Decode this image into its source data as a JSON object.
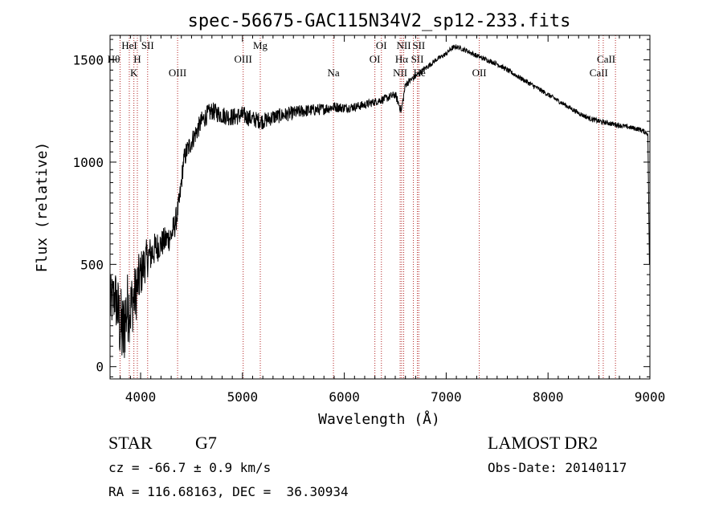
{
  "colors": {
    "spectrum": "#000000",
    "line_marker": "#b22222",
    "axis": "#000000",
    "background": "#ffffff"
  },
  "chart_data": {
    "type": "line",
    "title": "spec-56675-GAC115N34V2_sp12-233.fits",
    "xlabel": "Wavelength (Å)",
    "ylabel": "Flux (relative)",
    "xlim": [
      3700,
      9000
    ],
    "ylim": [
      -60,
      1620
    ],
    "xticks": [
      4000,
      5000,
      6000,
      7000,
      8000,
      9000
    ],
    "xtick_labels": [
      "4000",
      "5000",
      "6000",
      "7000",
      "8000",
      "9000"
    ],
    "yticks": [
      0,
      500,
      1000,
      1500
    ],
    "ytick_labels": [
      "0",
      "500",
      "1000",
      "1500"
    ],
    "series": [
      {
        "name": "spectrum",
        "x": [
          3700,
          3750,
          3800,
          3830,
          3850,
          3880,
          3900,
          3920,
          3950,
          3970,
          4000,
          4050,
          4100,
          4150,
          4200,
          4250,
          4300,
          4340,
          4380,
          4400,
          4420,
          4450,
          4500,
          4550,
          4600,
          4650,
          4700,
          4800,
          4900,
          5000,
          5100,
          5200,
          5300,
          5400,
          5500,
          5600,
          5700,
          5800,
          5900,
          6000,
          6100,
          6200,
          6300,
          6400,
          6500,
          6560,
          6600,
          6700,
          6800,
          6900,
          7000,
          7050,
          7100,
          7150,
          7200,
          7300,
          7400,
          7500,
          7600,
          7700,
          7800,
          7900,
          8000,
          8100,
          8200,
          8300,
          8400,
          8500,
          8600,
          8700,
          8800,
          8900,
          8980
        ],
        "values": [
          300,
          350,
          200,
          150,
          250,
          300,
          280,
          320,
          350,
          400,
          450,
          520,
          550,
          580,
          600,
          620,
          640,
          700,
          800,
          900,
          1000,
          1050,
          1100,
          1150,
          1200,
          1230,
          1250,
          1230,
          1220,
          1230,
          1210,
          1200,
          1220,
          1230,
          1240,
          1250,
          1255,
          1260,
          1270,
          1265,
          1270,
          1280,
          1295,
          1310,
          1330,
          1250,
          1380,
          1420,
          1460,
          1500,
          1530,
          1555,
          1565,
          1555,
          1545,
          1520,
          1500,
          1480,
          1450,
          1420,
          1390,
          1360,
          1330,
          1300,
          1270,
          1240,
          1215,
          1200,
          1190,
          1180,
          1170,
          1160,
          1140
        ],
        "noise": [
          140,
          140,
          200,
          220,
          200,
          180,
          170,
          160,
          150,
          140,
          120,
          100,
          90,
          80,
          70,
          70,
          70,
          65,
          60,
          55,
          55,
          55,
          50,
          50,
          50,
          48,
          45,
          45,
          45,
          45,
          42,
          40,
          38,
          36,
          34,
          32,
          30,
          28,
          26,
          24,
          22,
          22,
          20,
          20,
          20,
          20,
          18,
          16,
          14,
          12,
          12,
          12,
          12,
          12,
          12,
          12,
          12,
          12,
          12,
          12,
          12,
          12,
          12,
          12,
          12,
          12,
          12,
          12,
          12,
          12,
          12,
          12,
          12
        ]
      }
    ],
    "line_markers": [
      {
        "label": "Hθ",
        "x": 3798,
        "row": 2,
        "anchor": "end"
      },
      {
        "label": "HeI",
        "x": 3889,
        "row": 1,
        "anchor": "middle"
      },
      {
        "label": "K",
        "x": 3934,
        "row": 3,
        "anchor": "middle"
      },
      {
        "label": "H",
        "x": 3968,
        "row": 2,
        "anchor": "middle"
      },
      {
        "label": "SII",
        "x": 4069,
        "row": 1,
        "anchor": "middle"
      },
      {
        "label": "OIII",
        "x": 4363,
        "row": 3,
        "anchor": "middle"
      },
      {
        "label": "OIII",
        "x": 5007,
        "row": 2,
        "anchor": "middle"
      },
      {
        "label": "Mg",
        "x": 5175,
        "row": 1,
        "anchor": "middle"
      },
      {
        "label": "Na",
        "x": 5893,
        "row": 3,
        "anchor": "middle"
      },
      {
        "label": "OI",
        "x": 6300,
        "row": 2,
        "anchor": "middle"
      },
      {
        "label": "OI",
        "x": 6364,
        "row": 1,
        "anchor": "middle"
      },
      {
        "label": "NII",
        "x": 6548,
        "row": 3,
        "anchor": "middle"
      },
      {
        "label": "Hα",
        "x": 6563,
        "row": 2,
        "anchor": "middle"
      },
      {
        "label": "NII",
        "x": 6583,
        "row": 1,
        "anchor": "middle"
      },
      {
        "label": "SII",
        "x": 6717,
        "row": 2,
        "anchor": "middle"
      },
      {
        "label": "SII",
        "x": 6731,
        "row": 1,
        "anchor": "middle"
      },
      {
        "label": "He",
        "x": 6678,
        "row": 3,
        "anchor": "start"
      },
      {
        "label": "OII",
        "x": 7325,
        "row": 3,
        "anchor": "middle"
      },
      {
        "label": "CaII",
        "x": 8498,
        "row": 3,
        "anchor": "middle"
      },
      {
        "label": "CaII",
        "x": 8662,
        "row": 2,
        "anchor": "end"
      },
      {
        "label": "",
        "x": 8542,
        "row": 0,
        "anchor": "middle"
      }
    ]
  },
  "info": {
    "object_class": "STAR",
    "subclass": "G7",
    "redshift": "cz = -66.7 ± 0.9 km/s",
    "coords": "RA = 116.68163, DEC =  36.30934",
    "survey": "LAMOST DR2",
    "obs_date": "Obs-Date: 20140117"
  }
}
